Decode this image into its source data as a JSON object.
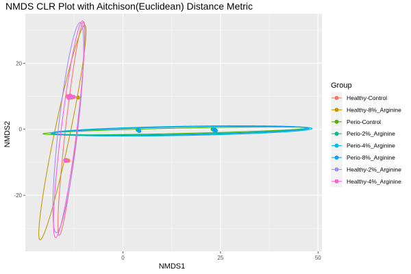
{
  "chart_data": {
    "type": "scatter",
    "title": "NMDS CLR Plot with Aitchison(Euclidean) Distance Metric",
    "xlabel": "NMDS1",
    "ylabel": "NMDS2",
    "xlim": [
      -25,
      51
    ],
    "ylim": [
      -37,
      35
    ],
    "x_ticks": [
      0,
      25,
      50
    ],
    "y_ticks": [
      -20,
      0,
      20
    ],
    "grid": true,
    "background": "#EBEBEB",
    "legend": {
      "title": "Group",
      "position": "right"
    },
    "series": [
      {
        "name": "Healthy-Control",
        "color": "#F8766D",
        "points": [
          [
            -14.5,
            -9.3
          ],
          [
            -14.0,
            -9.5
          ],
          [
            -13.8,
            9.8
          ],
          [
            -13.2,
            9.6
          ],
          [
            -14.2,
            10.0
          ]
        ],
        "ellipse": {
          "center": [
            -13.2,
            0.2
          ],
          "semi_major": 32.5,
          "semi_minor": 1.5,
          "angle_deg": 84.5
        }
      },
      {
        "name": "Healthy-8%_Arginine",
        "color": "#C49A00",
        "points": [
          [
            -11.5,
            9.6
          ],
          [
            -14.5,
            -9.5
          ],
          [
            -13.0,
            9.8
          ]
        ],
        "ellipse": {
          "center": [
            -15.5,
            -1.0
          ],
          "semi_major": 33.0,
          "semi_minor": 2.0,
          "angle_deg": 80.0
        }
      },
      {
        "name": "Perio-Control",
        "color": "#53B400",
        "points": [
          [
            3.8,
            -0.2
          ],
          [
            23.0,
            0.0
          ],
          [
            23.5,
            -0.3
          ]
        ],
        "ellipse": {
          "center": [
            13.5,
            -0.5
          ],
          "semi_major": 34.0,
          "semi_minor": 0.8,
          "angle_deg": 1.5
        }
      },
      {
        "name": "Perio-2%_Arginine",
        "color": "#00C094",
        "points": [
          [
            4.0,
            -0.3
          ],
          [
            23.2,
            0.1
          ],
          [
            23.6,
            -0.2
          ]
        ],
        "ellipse": {
          "center": [
            14.5,
            -0.4
          ],
          "semi_major": 32.5,
          "semi_minor": 1.1,
          "angle_deg": 1.3
        }
      },
      {
        "name": "Perio-4%_Arginine",
        "color": "#00B6EB",
        "points": [
          [
            4.2,
            -0.5
          ],
          [
            23.4,
            -0.1
          ],
          [
            23.8,
            -0.4
          ]
        ],
        "ellipse": {
          "center": [
            15.0,
            -0.5
          ],
          "semi_major": 33.5,
          "semi_minor": 1.4,
          "angle_deg": 1.2
        }
      },
      {
        "name": "Perio-8%_Arginine",
        "color": "#06A4FF",
        "points": [
          [
            4.1,
            -0.4
          ],
          [
            23.3,
            -0.2
          ],
          [
            23.7,
            -0.3
          ]
        ],
        "ellipse": {
          "center": [
            14.8,
            -0.5
          ],
          "semi_major": 33.0,
          "semi_minor": 1.2,
          "angle_deg": 1.4
        }
      },
      {
        "name": "Healthy-2%_Arginine",
        "color": "#A58AFF",
        "points": [
          [
            -14.0,
            9.7
          ],
          [
            -13.3,
            9.9
          ],
          [
            -14.8,
            -9.4
          ]
        ],
        "ellipse": {
          "center": [
            -14.0,
            0.5
          ],
          "semi_major": 32.0,
          "semi_minor": 2.5,
          "angle_deg": 84.5
        }
      },
      {
        "name": "Healthy-4%_Arginine",
        "color": "#FB61D7",
        "points": [
          [
            -13.9,
            9.5
          ],
          [
            -13.5,
            10.2
          ],
          [
            -14.6,
            -9.6
          ],
          [
            -12.6,
            9.8
          ]
        ],
        "ellipse": {
          "center": [
            -13.8,
            0.0
          ],
          "semi_major": 33.0,
          "semi_minor": 2.0,
          "angle_deg": 84.0
        }
      }
    ]
  }
}
